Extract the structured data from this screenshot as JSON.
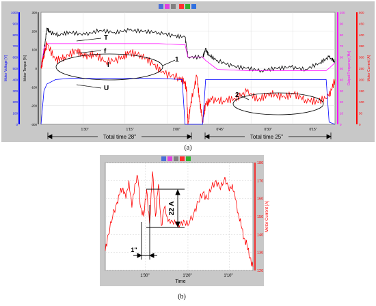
{
  "colors": {
    "frame": "#c8c8c8",
    "plot_bg": "#ffffff",
    "torque": "#000000",
    "frequency": "#ff00ff",
    "current": "#ff0000",
    "voltage": "#0000ff",
    "annotation": "#000000"
  },
  "chart_data": [
    {
      "id": "a",
      "type": "line",
      "caption": "(a)",
      "x_ticks": [
        "1'30\"",
        "1'15\"",
        "1'00\"",
        "0'45\"",
        "0'30\"",
        "0'15\""
      ],
      "left_axis_1": {
        "label": "Motor Voltage [V]",
        "ticks": [
          "0",
          "100",
          "200",
          "300",
          "400",
          "500",
          "600",
          "700",
          "800",
          "900",
          "1000"
        ]
      },
      "left_axis_2": {
        "label": "Motor Torque [%]",
        "ticks": [
          "-300",
          "-200",
          "-100",
          "0",
          "100",
          "200",
          "300"
        ]
      },
      "right_axis_1": {
        "label": "Output Frequency [Hz]",
        "ticks": [
          "0",
          "10",
          "20",
          "30",
          "40",
          "50",
          "60",
          "70",
          "80",
          "90",
          "100"
        ]
      },
      "right_axis_2": {
        "label": "Motor Current [A]",
        "ticks": [
          "0",
          "50",
          "100",
          "150",
          "200",
          "250",
          "300",
          "350",
          "400",
          "450",
          "500"
        ]
      },
      "series_labels": [
        "T",
        "f",
        "I",
        "U"
      ],
      "annotations": [
        "1",
        "2"
      ],
      "durations": [
        "Total time 28\"",
        "Total time 25\""
      ],
      "series_shape_note": "series drawn from estimated normalized levels (0 = bottom of plot, 1 = top)",
      "series": [
        {
          "name": "T",
          "points": [
            [
              0,
              0.5
            ],
            [
              0.01,
              0.65
            ],
            [
              0.02,
              0.86
            ],
            [
              0.03,
              0.82
            ],
            [
              0.06,
              0.8
            ],
            [
              0.1,
              0.82
            ],
            [
              0.15,
              0.8
            ],
            [
              0.2,
              0.84
            ],
            [
              0.25,
              0.82
            ],
            [
              0.3,
              0.84
            ],
            [
              0.35,
              0.83
            ],
            [
              0.4,
              0.82
            ],
            [
              0.45,
              0.79
            ],
            [
              0.49,
              0.78
            ],
            [
              0.5,
              0.6
            ],
            [
              0.55,
              0.6
            ],
            [
              0.56,
              0.67
            ],
            [
              0.57,
              0.62
            ],
            [
              0.6,
              0.57
            ],
            [
              0.65,
              0.52
            ],
            [
              0.7,
              0.5
            ],
            [
              0.75,
              0.48
            ],
            [
              0.8,
              0.5
            ],
            [
              0.85,
              0.51
            ],
            [
              0.9,
              0.49
            ],
            [
              0.95,
              0.55
            ],
            [
              0.98,
              0.6
            ],
            [
              1.0,
              0.56
            ]
          ]
        },
        {
          "name": "f",
          "points": [
            [
              0,
              0.5
            ],
            [
              0.01,
              0.68
            ],
            [
              0.02,
              0.72
            ],
            [
              0.1,
              0.72
            ],
            [
              0.2,
              0.72
            ],
            [
              0.3,
              0.72
            ],
            [
              0.4,
              0.72
            ],
            [
              0.49,
              0.71
            ],
            [
              0.5,
              0.6
            ],
            [
              0.55,
              0.6
            ],
            [
              0.56,
              0.57
            ],
            [
              0.6,
              0.49
            ],
            [
              0.7,
              0.48
            ],
            [
              0.8,
              0.48
            ],
            [
              0.9,
              0.48
            ],
            [
              0.97,
              0.48
            ],
            [
              0.98,
              0.5
            ],
            [
              1.0,
              0.55
            ]
          ]
        },
        {
          "name": "I",
          "points": [
            [
              0,
              0.5
            ],
            [
              0.01,
              0.62
            ],
            [
              0.02,
              0.72
            ],
            [
              0.05,
              0.57
            ],
            [
              0.08,
              0.6
            ],
            [
              0.12,
              0.66
            ],
            [
              0.15,
              0.6
            ],
            [
              0.18,
              0.63
            ],
            [
              0.22,
              0.56
            ],
            [
              0.27,
              0.58
            ],
            [
              0.3,
              0.64
            ],
            [
              0.34,
              0.62
            ],
            [
              0.38,
              0.54
            ],
            [
              0.42,
              0.45
            ],
            [
              0.47,
              0.42
            ],
            [
              0.49,
              0.37
            ],
            [
              0.495,
              0.3
            ],
            [
              0.5,
              0.0
            ],
            [
              0.51,
              0.2
            ],
            [
              0.53,
              0.43
            ],
            [
              0.54,
              0.2
            ],
            [
              0.55,
              0.03
            ],
            [
              0.56,
              0.18
            ],
            [
              0.58,
              0.22
            ],
            [
              0.62,
              0.21
            ],
            [
              0.66,
              0.23
            ],
            [
              0.7,
              0.29
            ],
            [
              0.74,
              0.22
            ],
            [
              0.78,
              0.28
            ],
            [
              0.82,
              0.24
            ],
            [
              0.86,
              0.27
            ],
            [
              0.9,
              0.22
            ],
            [
              0.94,
              0.2
            ],
            [
              0.98,
              0.25
            ],
            [
              1.0,
              0.4
            ]
          ]
        },
        {
          "name": "U",
          "points": [
            [
              0,
              0.0
            ],
            [
              0.01,
              0.3
            ],
            [
              0.02,
              0.36
            ],
            [
              0.05,
              0.4
            ],
            [
              0.1,
              0.41
            ],
            [
              0.2,
              0.41
            ],
            [
              0.3,
              0.41
            ],
            [
              0.4,
              0.41
            ],
            [
              0.48,
              0.4
            ],
            [
              0.49,
              0.0
            ],
            [
              0.55,
              0.0
            ],
            [
              0.56,
              0.4
            ],
            [
              0.6,
              0.4
            ],
            [
              0.7,
              0.4
            ],
            [
              0.8,
              0.4
            ],
            [
              0.9,
              0.4
            ],
            [
              0.97,
              0.4
            ],
            [
              0.98,
              0.02
            ],
            [
              1.0,
              0.0
            ]
          ]
        }
      ]
    },
    {
      "id": "b",
      "type": "line",
      "caption": "(b)",
      "xlabel": "Time",
      "ylabel": "Motor Current [A]",
      "x_ticks": [
        "1'30\"",
        "1'20\"",
        "1'10\""
      ],
      "y_ticks": [
        "120",
        "130",
        "140",
        "150",
        "160",
        "170",
        "180"
      ],
      "ylim": [
        120,
        180
      ],
      "annotations": [
        "22 A",
        "1\""
      ],
      "series": [
        {
          "name": "Motor Current",
          "points": [
            [
              0,
              131
            ],
            [
              0.02,
              140
            ],
            [
              0.05,
              150
            ],
            [
              0.08,
              158
            ],
            [
              0.1,
              163
            ],
            [
              0.12,
              166
            ],
            [
              0.14,
              160
            ],
            [
              0.16,
              170
            ],
            [
              0.18,
              155
            ],
            [
              0.2,
              168
            ],
            [
              0.22,
              172
            ],
            [
              0.24,
              155
            ],
            [
              0.26,
              150
            ],
            [
              0.28,
              165
            ],
            [
              0.3,
              146
            ],
            [
              0.32,
              175
            ],
            [
              0.34,
              150
            ],
            [
              0.36,
              168
            ],
            [
              0.38,
              145
            ],
            [
              0.4,
              155
            ],
            [
              0.42,
              150
            ],
            [
              0.44,
              146
            ],
            [
              0.47,
              148
            ],
            [
              0.5,
              144
            ],
            [
              0.53,
              148
            ],
            [
              0.56,
              145
            ],
            [
              0.6,
              152
            ],
            [
              0.63,
              158
            ],
            [
              0.66,
              163
            ],
            [
              0.69,
              160
            ],
            [
              0.72,
              166
            ],
            [
              0.75,
              170
            ],
            [
              0.78,
              165
            ],
            [
              0.81,
              172
            ],
            [
              0.84,
              164
            ],
            [
              0.86,
              168
            ],
            [
              0.88,
              160
            ],
            [
              0.9,
              152
            ],
            [
              0.92,
              145
            ],
            [
              0.94,
              138
            ],
            [
              0.96,
              134
            ],
            [
              0.98,
              127
            ],
            [
              1.0,
              122
            ]
          ]
        }
      ]
    }
  ]
}
